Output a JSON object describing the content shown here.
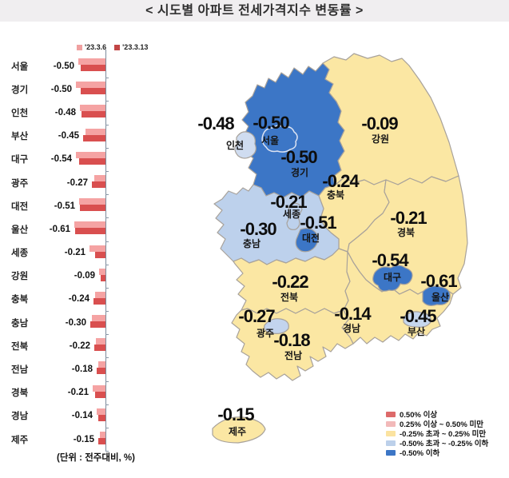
{
  "title": "< 시도별 아파트 전세가격지수 변동률 >",
  "unit_note": "(단위 : 전주대비, %)",
  "chart_data": {
    "type": "bar",
    "orientation": "horizontal",
    "title": "시도별 아파트 전세가격지수 변동률",
    "unit": "전주대비, %",
    "legend_position": "top",
    "xlim": [
      -0.7,
      0
    ],
    "categories": [
      "서울",
      "경기",
      "인천",
      "부산",
      "대구",
      "광주",
      "대전",
      "울산",
      "세종",
      "강원",
      "충북",
      "충남",
      "전북",
      "전남",
      "경북",
      "경남",
      "제주"
    ],
    "series": [
      {
        "name": "'23.3.6",
        "color": "#f5a3a3",
        "legend_color": "#f0a0a0",
        "estimated_from_bar_lengths": true,
        "values": [
          -0.55,
          -0.59,
          -0.52,
          -0.41,
          -0.59,
          -0.23,
          -0.54,
          -0.63,
          -0.33,
          -0.13,
          -0.21,
          -0.27,
          -0.19,
          -0.15,
          -0.25,
          -0.17,
          -0.12
        ]
      },
      {
        "name": "'23.3.13",
        "color": "#d94f4f",
        "legend_color": "#c24545",
        "values": [
          -0.5,
          -0.5,
          -0.48,
          -0.45,
          -0.54,
          -0.27,
          -0.51,
          -0.61,
          -0.21,
          -0.09,
          -0.24,
          -0.3,
          -0.22,
          -0.18,
          -0.21,
          -0.14,
          -0.15
        ]
      }
    ],
    "value_labels": [
      "-0.50",
      "-0.50",
      "-0.48",
      "-0.45",
      "-0.54",
      "-0.27",
      "-0.51",
      "-0.61",
      "-0.21",
      "-0.09",
      "-0.24",
      "-0.30",
      "-0.22",
      "-0.18",
      "-0.21",
      "-0.14",
      "-0.15"
    ]
  },
  "map": {
    "regions": [
      {
        "id": "gyeonggi",
        "name": "경기",
        "value": "-0.50",
        "fill": "#3c76c6"
      },
      {
        "id": "gangwon",
        "name": "강원",
        "value": "-0.09",
        "fill": "#fbe7a3"
      },
      {
        "id": "chungbuk",
        "name": "충북",
        "value": "-0.24",
        "fill": "#fbe7a3"
      },
      {
        "id": "gyeongbuk",
        "name": "경북",
        "value": "-0.21",
        "fill": "#fbe7a3"
      },
      {
        "id": "chungnam",
        "name": "충남",
        "value": "-0.30",
        "fill": "#bdd1ec"
      },
      {
        "id": "jeonbuk",
        "name": "전북",
        "value": "-0.22",
        "fill": "#fbe7a3"
      },
      {
        "id": "gyeongnam",
        "name": "경남",
        "value": "-0.14",
        "fill": "#fbe7a3"
      },
      {
        "id": "jeonnam",
        "name": "전남",
        "value": "-0.18",
        "fill": "#fbe7a3"
      },
      {
        "id": "jeju",
        "name": "제주",
        "value": "-0.15",
        "fill": "#fbe7a3"
      },
      {
        "id": "incheon",
        "name": "인천",
        "value": "-0.48",
        "fill": "#cfdcf0"
      },
      {
        "id": "seoul",
        "name": "서울",
        "value": "-0.50",
        "fill": "#3c76c6"
      },
      {
        "id": "sejong",
        "name": "세종",
        "value": "-0.21",
        "fill": "#bdd1ec"
      },
      {
        "id": "daejeon",
        "name": "대전",
        "value": "-0.51",
        "fill": "#3c76c6"
      },
      {
        "id": "daegu",
        "name": "대구",
        "value": "-0.54",
        "fill": "#3c76c6"
      },
      {
        "id": "ulsan",
        "name": "울산",
        "value": "-0.61",
        "fill": "#3c76c6"
      },
      {
        "id": "busan",
        "name": "부산",
        "value": "-0.45",
        "fill": "#c6d7ee"
      },
      {
        "id": "gwangju",
        "name": "광주",
        "value": "-0.27",
        "fill": "#c3d4ee"
      }
    ],
    "legend": [
      {
        "label": "0.50% 이상",
        "color": "#dd6a6a"
      },
      {
        "label": "0.25% 이상 ~ 0.50% 미만",
        "color": "#f2b9b9"
      },
      {
        "label": "-0.25% 초과 ~ 0.25% 미만",
        "color": "#fbe3a0"
      },
      {
        "label": "-0.50% 초과 ~ -0.25% 이하",
        "color": "#bcd0ea"
      },
      {
        "label": "-0.50% 이하",
        "color": "#3c76c6"
      }
    ]
  }
}
